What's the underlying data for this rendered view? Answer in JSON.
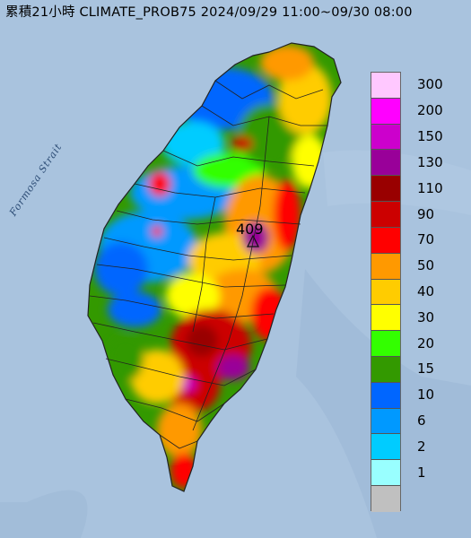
{
  "title": "累積21小時 CLIMATE_PROB75 2024/09/29 11:00~09/30 08:00",
  "map": {
    "sea_label": "Formosa Strait",
    "peak_value": "409",
    "sea_color": "#a9c3de"
  },
  "legend": {
    "levels": [
      {
        "label": "300",
        "color": "#ffc8ff"
      },
      {
        "label": "200",
        "color": "#ff00ff"
      },
      {
        "label": "150",
        "color": "#cc00cc"
      },
      {
        "label": "130",
        "color": "#990099"
      },
      {
        "label": "110",
        "color": "#990000"
      },
      {
        "label": "90",
        "color": "#cc0000"
      },
      {
        "label": "70",
        "color": "#ff0000"
      },
      {
        "label": "50",
        "color": "#ff9900"
      },
      {
        "label": "40",
        "color": "#ffcc00"
      },
      {
        "label": "30",
        "color": "#ffff00"
      },
      {
        "label": "20",
        "color": "#33ff00"
      },
      {
        "label": "15",
        "color": "#339900"
      },
      {
        "label": "10",
        "color": "#0066ff"
      },
      {
        "label": "6",
        "color": "#0099ff"
      },
      {
        "label": "2",
        "color": "#00ccff"
      },
      {
        "label": "1",
        "color": "#99ffff"
      },
      {
        "label": "",
        "color": "#c0c0c0"
      }
    ]
  }
}
